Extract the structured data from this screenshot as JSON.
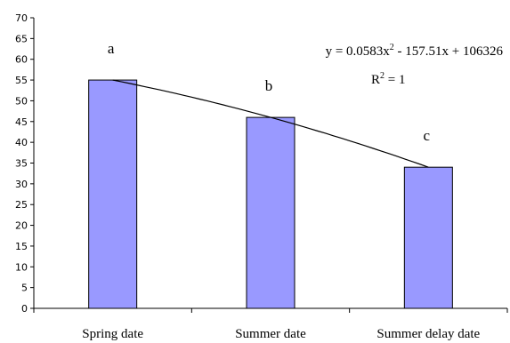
{
  "chart_data": {
    "type": "bar",
    "categories": [
      "Spring date",
      "Summer date",
      "Summer delay date"
    ],
    "values": [
      55,
      46,
      34
    ],
    "significance_letters": [
      "a",
      "b",
      "c"
    ],
    "ylim": [
      0,
      70
    ],
    "yticks": [
      0,
      5,
      10,
      15,
      20,
      25,
      30,
      35,
      40,
      45,
      50,
      55,
      60,
      65,
      70
    ],
    "trendline": {
      "type": "polynomial",
      "equation": {
        "prefix": "y = 0.0583x",
        "exponent": "2",
        "suffix": " - 157.51x + 106326"
      },
      "r2": {
        "prefix": "R",
        "exponent": "2",
        "suffix": " = 1"
      }
    },
    "grid": false,
    "legend": "none",
    "colors": {
      "bar_fill": "#9999ff",
      "bar_stroke": "#000000",
      "trend_line": "#000000"
    }
  }
}
